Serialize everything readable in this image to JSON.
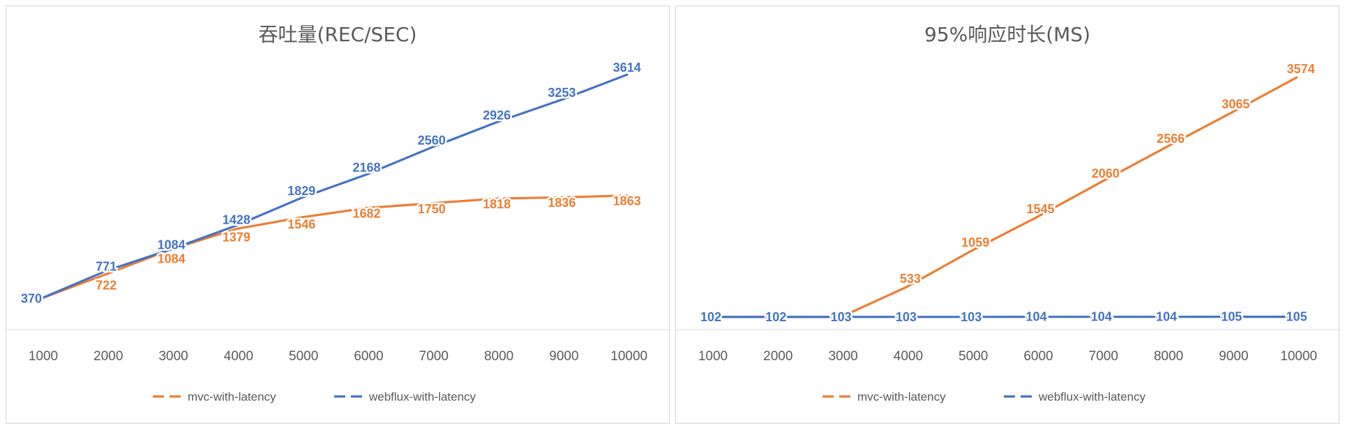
{
  "chart_data": [
    {
      "type": "line",
      "title": "吞吐量(REC/SEC)",
      "categories": [
        "1000",
        "2000",
        "3000",
        "4000",
        "5000",
        "6000",
        "7000",
        "8000",
        "9000",
        "10000"
      ],
      "series": [
        {
          "name": "mvc-with-latency",
          "color": "#ED7D31",
          "values": [
            370,
            722,
            1084,
            1379,
            1546,
            1682,
            1750,
            1818,
            1836,
            1863
          ],
          "labels": [
            "370",
            "722",
            "1084",
            "1379",
            "1546",
            "1682",
            "1750",
            "1818",
            "1836",
            "1863"
          ]
        },
        {
          "name": "webflux-with-latency",
          "color": "#4472C4",
          "values": [
            370,
            771,
            1084,
            1428,
            1829,
            2168,
            2560,
            2926,
            3253,
            3614
          ],
          "labels": [
            "370",
            "771",
            "1084",
            "1428",
            "1829",
            "2168",
            "2560",
            "2926",
            "3253",
            "3614"
          ]
        }
      ],
      "ylim": [
        0,
        4000
      ],
      "legend_position": "bottom",
      "grid": false
    },
    {
      "type": "line",
      "title": "95%响应时长(MS)",
      "categories": [
        "1000",
        "2000",
        "3000",
        "4000",
        "5000",
        "6000",
        "7000",
        "8000",
        "9000",
        "10000"
      ],
      "series": [
        {
          "name": "mvc-with-latency",
          "color": "#ED7D31",
          "values": [
            102,
            102,
            103,
            533,
            1059,
            1545,
            2060,
            2566,
            3065,
            3574
          ],
          "labels": [
            "102",
            "102",
            "103",
            "533",
            "1059",
            "1545",
            "2060",
            "2566",
            "3065",
            "3574"
          ]
        },
        {
          "name": "webflux-with-latency",
          "color": "#4472C4",
          "values": [
            102,
            102,
            103,
            103,
            103,
            104,
            104,
            104,
            105,
            105
          ],
          "labels": [
            "102",
            "102",
            "103",
            "103",
            "103",
            "104",
            "104",
            "104",
            "105",
            "105"
          ]
        }
      ],
      "ylim": [
        0,
        4000
      ],
      "legend_position": "bottom",
      "grid": false
    }
  ]
}
